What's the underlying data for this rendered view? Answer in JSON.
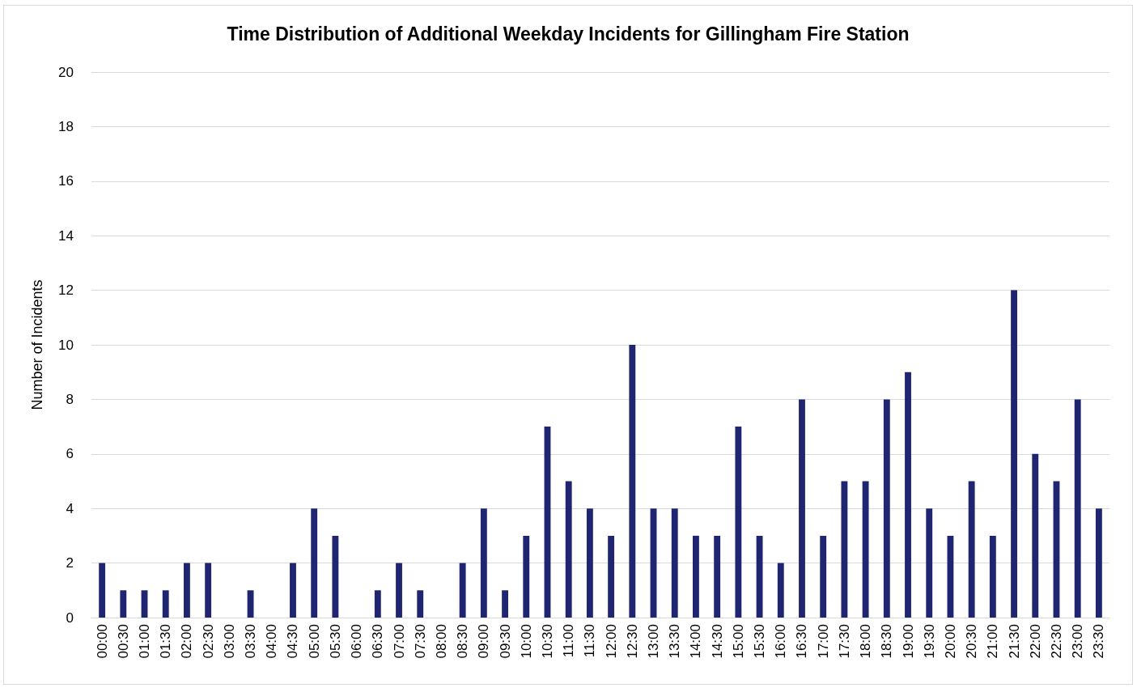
{
  "chart_data": {
    "type": "bar",
    "title": "Time Distribution of Additional Weekday Incidents for Gillingham Fire Station",
    "ylabel": "Number of Incidents",
    "categories": [
      "00:00",
      "00:30",
      "01:00",
      "01:30",
      "02:00",
      "02:30",
      "03:00",
      "03:30",
      "04:00",
      "04:30",
      "05:00",
      "05:30",
      "06:00",
      "06:30",
      "07:00",
      "07:30",
      "08:00",
      "08:30",
      "09:00",
      "09:30",
      "10:00",
      "10:30",
      "11:00",
      "11:30",
      "12:00",
      "12:30",
      "13:00",
      "13:30",
      "14:00",
      "14:30",
      "15:00",
      "15:30",
      "16:00",
      "16:30",
      "17:00",
      "17:30",
      "18:00",
      "18:30",
      "19:00",
      "19:30",
      "20:00",
      "20:30",
      "21:00",
      "21:30",
      "22:00",
      "22:30",
      "23:00",
      "23:30"
    ],
    "values": [
      2,
      1,
      1,
      1,
      2,
      2,
      0,
      1,
      0,
      2,
      4,
      3,
      0,
      1,
      2,
      1,
      0,
      2,
      4,
      1,
      3,
      7,
      5,
      4,
      3,
      10,
      4,
      4,
      3,
      3,
      7,
      3,
      2,
      8,
      3,
      5,
      5,
      8,
      9,
      4,
      3,
      5,
      3,
      12,
      6,
      5,
      8,
      4
    ],
    "color": "#1f2571",
    "ylim": [
      0,
      20
    ],
    "yticks": [
      0,
      2,
      4,
      6,
      8,
      10,
      12,
      14,
      16,
      18,
      20
    ],
    "grid": "y"
  }
}
